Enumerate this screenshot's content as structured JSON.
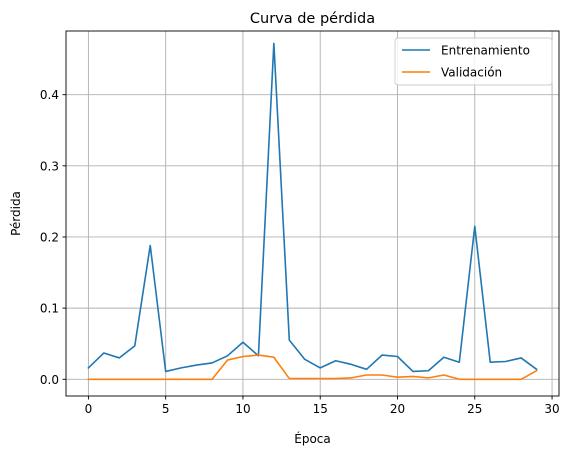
{
  "chart_data": {
    "type": "line",
    "title": "Curva de pérdida",
    "xlabel": "Época",
    "ylabel": "Pérdida",
    "xlim": [
      -1.45,
      30.45
    ],
    "ylim": [
      -0.0235,
      0.4895
    ],
    "xticks": [
      0,
      5,
      10,
      15,
      20,
      25,
      30
    ],
    "yticks": [
      0.0,
      0.1,
      0.2,
      0.3,
      0.4
    ],
    "grid": true,
    "legend_position": "top-right",
    "x": [
      0,
      1,
      2,
      3,
      4,
      5,
      6,
      7,
      8,
      9,
      10,
      11,
      12,
      13,
      14,
      15,
      16,
      17,
      18,
      19,
      20,
      21,
      22,
      23,
      24,
      25,
      26,
      27,
      28,
      29
    ],
    "series": [
      {
        "name": "Entrenamiento",
        "color": "#1f77b4",
        "values": [
          0.016,
          0.037,
          0.03,
          0.047,
          0.188,
          0.011,
          0.016,
          0.02,
          0.023,
          0.033,
          0.052,
          0.033,
          0.472,
          0.055,
          0.028,
          0.016,
          0.026,
          0.021,
          0.014,
          0.034,
          0.032,
          0.011,
          0.012,
          0.031,
          0.024,
          0.215,
          0.024,
          0.025,
          0.03,
          0.014
        ]
      },
      {
        "name": "Validación",
        "color": "#ff7f0e",
        "values": [
          0.0,
          0.0,
          0.0,
          0.0,
          0.0,
          0.0,
          0.0,
          0.0,
          0.0,
          0.027,
          0.032,
          0.034,
          0.031,
          0.001,
          0.001,
          0.001,
          0.001,
          0.002,
          0.006,
          0.006,
          0.003,
          0.004,
          0.002,
          0.006,
          0.0,
          0.0,
          0.0,
          0.0,
          0.0,
          0.012
        ]
      }
    ]
  }
}
